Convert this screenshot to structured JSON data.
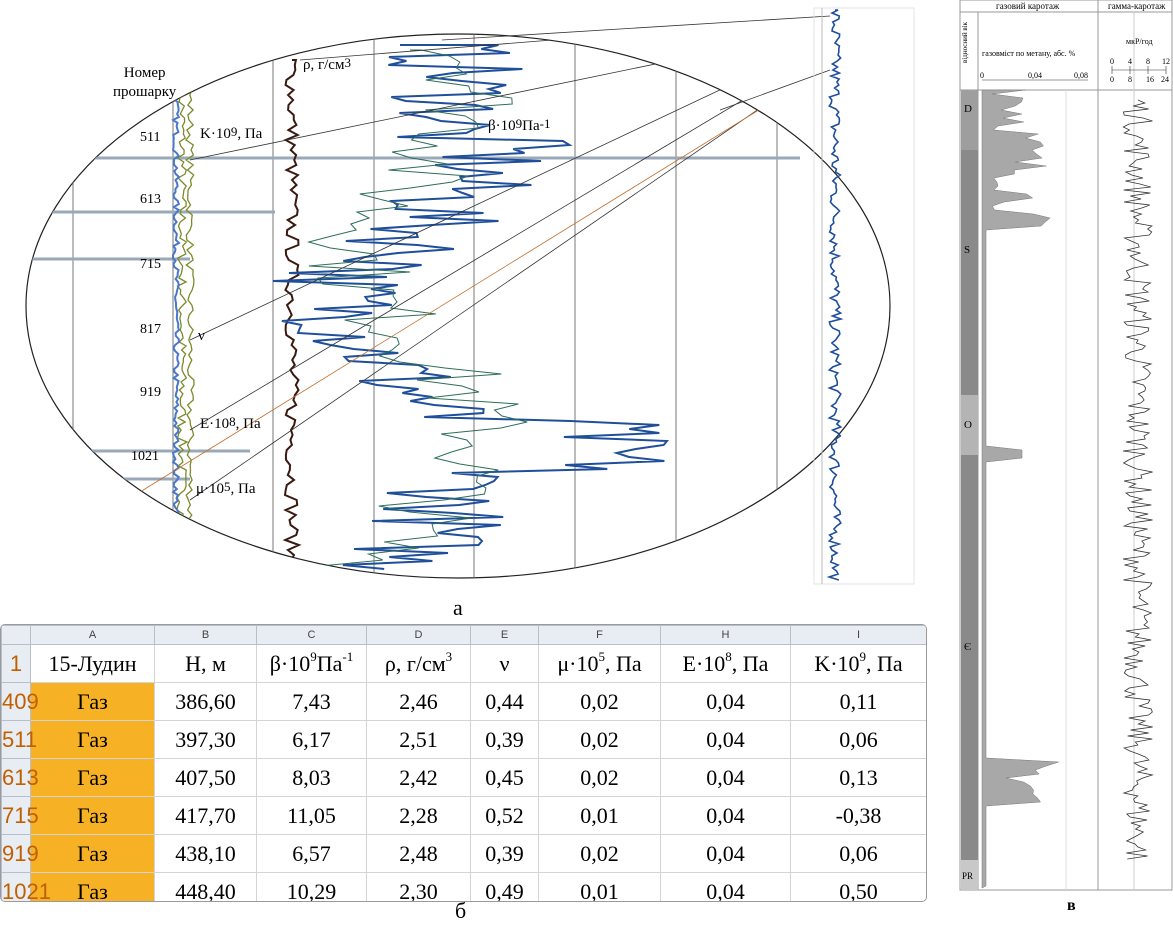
{
  "panel_a": {
    "caption": "а",
    "layer_label": "Номер\nпрошарку",
    "depth_labels": [
      "511",
      "613",
      "715",
      "817",
      "919",
      "1021"
    ],
    "curve_labels": {
      "K": "K·10",
      "K_exp": "9",
      "K_unit": ", Па",
      "rho": "ρ, г/см",
      "rho_exp": "3",
      "beta": "β·10",
      "beta_exp": "9",
      "beta_unit": "Па",
      "beta_unit_exp": "-1",
      "nu": "ν",
      "E": "E·10",
      "E_exp": "8",
      "E_unit": ", Па",
      "mu": "μ·10",
      "mu_exp": "5",
      "mu_unit": ", Па"
    }
  },
  "table": {
    "caption": "б",
    "col_letters": [
      "",
      "A",
      "B",
      "C",
      "D",
      "E",
      "F",
      "H",
      "I"
    ],
    "header_row_no": "1",
    "headers": [
      {
        "t": "15-Лудин",
        "sup": ""
      },
      {
        "t": "H, м",
        "sup": ""
      },
      {
        "t": "β·10",
        "sup": "9",
        "after": "Па",
        "sup2": "-1"
      },
      {
        "t": "ρ, г/см",
        "sup": "3"
      },
      {
        "t": "ν",
        "sup": ""
      },
      {
        "t": "μ·10",
        "sup": "5",
        "after": ", Па"
      },
      {
        "t": "E·10",
        "sup": "8",
        "after": ", Па"
      },
      {
        "t": "K·10",
        "sup": "9",
        "after": ", Па"
      }
    ],
    "rows": [
      {
        "n": "409",
        "cells": [
          "Газ",
          "386,60",
          "7,43",
          "2,46",
          "0,44",
          "0,02",
          "0,04",
          "0,11"
        ]
      },
      {
        "n": "511",
        "cells": [
          "Газ",
          "397,30",
          "6,17",
          "2,51",
          "0,39",
          "0,02",
          "0,04",
          "0,06"
        ]
      },
      {
        "n": "613",
        "cells": [
          "Газ",
          "407,50",
          "8,03",
          "2,42",
          "0,45",
          "0,02",
          "0,04",
          "0,13"
        ]
      },
      {
        "n": "715",
        "cells": [
          "Газ",
          "417,70",
          "11,05",
          "2,28",
          "0,52",
          "0,01",
          "0,04",
          "-0,38"
        ]
      },
      {
        "n": "919",
        "cells": [
          "Газ",
          "438,10",
          "6,57",
          "2,48",
          "0,39",
          "0,02",
          "0,04",
          "0,06"
        ]
      },
      {
        "n": "1021",
        "cells": [
          "Газ",
          "448,40",
          "10,29",
          "2,30",
          "0,49",
          "0,01",
          "0,04",
          "0,50"
        ]
      }
    ]
  },
  "panel_v": {
    "caption": "в",
    "gas_title": "газовий каротаж",
    "gamma_title": "гамма-каротаж",
    "gas_axis": "газовміст по метану, абс. %",
    "gas_ticks": [
      "0",
      "0,04",
      "0,08"
    ],
    "gamma_unit": "мкР/год",
    "gamma_ticks_top": [
      "0",
      "4",
      "8",
      "12"
    ],
    "gamma_ticks_bottom": [
      "0",
      "8",
      "16",
      "24"
    ],
    "age_header": "відносний вік",
    "ages": [
      "D",
      "S",
      "O",
      "Є",
      "PR"
    ],
    "colors": {
      "gas_fill": "#a8a8a8",
      "age_bar": "#8a8a8a",
      "curve_blue": "#1f4e9a",
      "curve_dark": "#1e2a3a",
      "gas_cell": "#f7b125",
      "rho_curve": "#3a1a10"
    }
  }
}
